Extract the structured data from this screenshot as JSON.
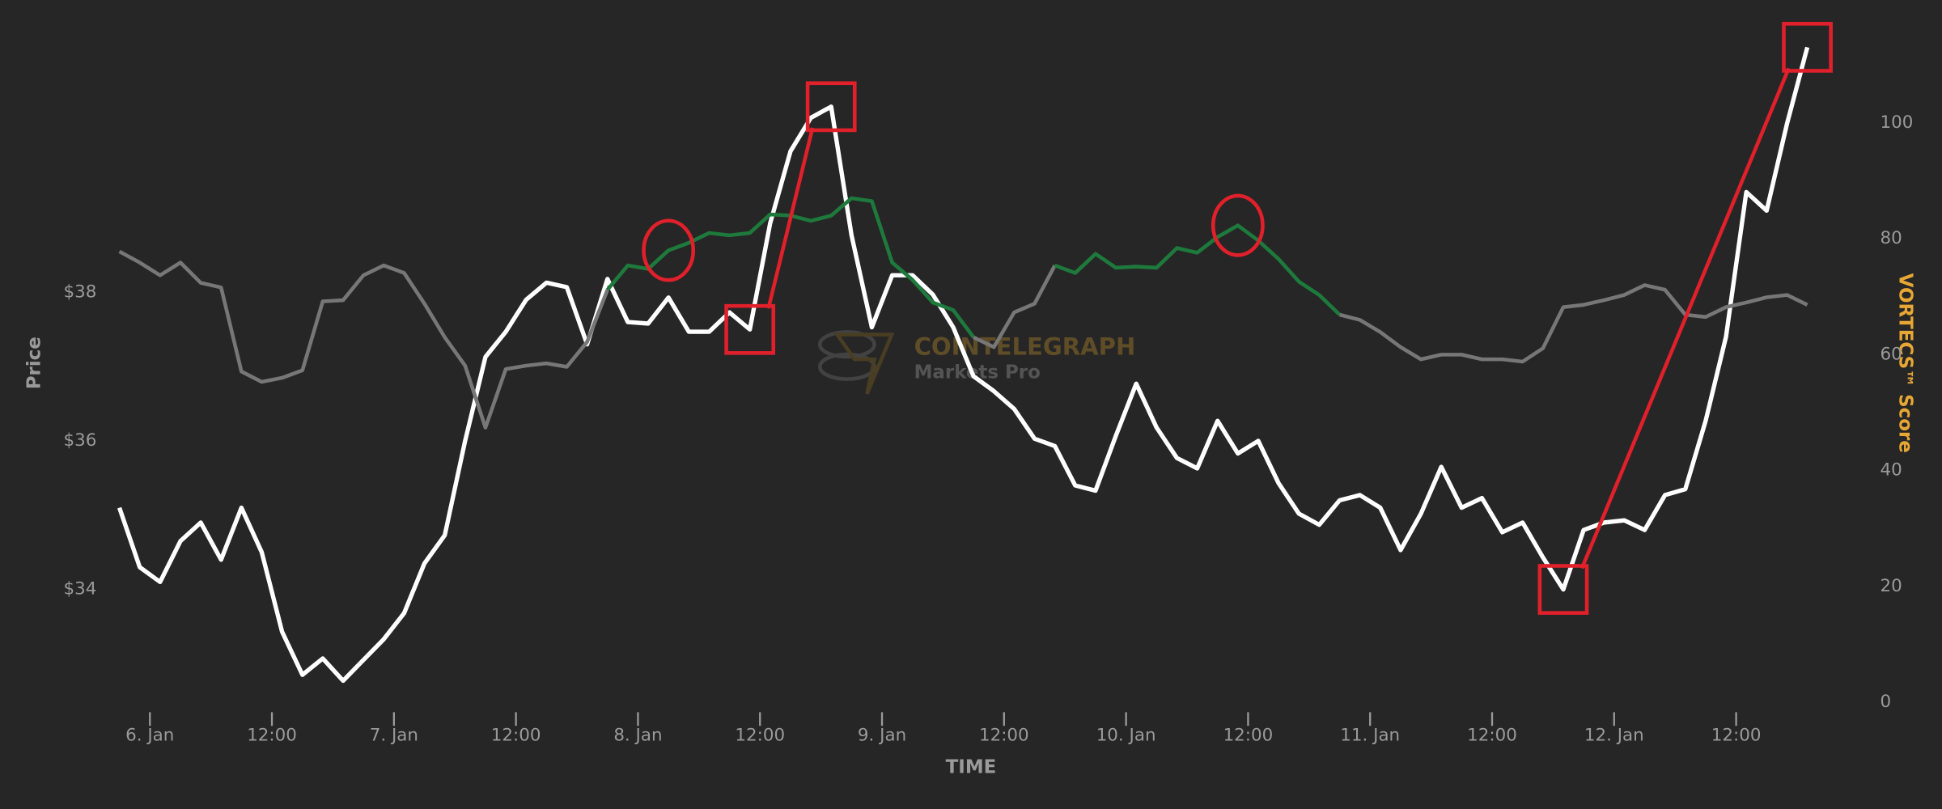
{
  "chart_data": {
    "type": "line",
    "x_label": "TIME",
    "y_label": "Price",
    "y2_label": "VORTECS™ Score",
    "y2_label_color": "#e8a735",
    "background": "#262626",
    "annotation_color": "#e0202a",
    "watermark": {
      "title": "COINTELEGRAPH",
      "subtitle": "Markets Pro"
    },
    "x": [
      -3,
      -1,
      1,
      3,
      5,
      7,
      9,
      11,
      13,
      15,
      17,
      19,
      21,
      23,
      25,
      27,
      29,
      31,
      33,
      35,
      37,
      39,
      41,
      43,
      45,
      47,
      49,
      51,
      53,
      55,
      57,
      59,
      61,
      63,
      65,
      67,
      69,
      71,
      73,
      75,
      77,
      79,
      81,
      83,
      85,
      87,
      89,
      91,
      93,
      95,
      97,
      99,
      101,
      103,
      105,
      107,
      109,
      111,
      113,
      115,
      117,
      119,
      121,
      123,
      125,
      127,
      129,
      131,
      133,
      135,
      137,
      139,
      141,
      143,
      145,
      147,
      149,
      151,
      153,
      155,
      157,
      159,
      161,
      163
    ],
    "xlim": [
      -3,
      164.6
    ],
    "xticks": [
      {
        "value": 0,
        "label": "6. Jan"
      },
      {
        "value": 12,
        "label": "12:00"
      },
      {
        "value": 24,
        "label": "7. Jan"
      },
      {
        "value": 36,
        "label": "12:00"
      },
      {
        "value": 48,
        "label": "8. Jan"
      },
      {
        "value": 60,
        "label": "12:00"
      },
      {
        "value": 72,
        "label": "9. Jan"
      },
      {
        "value": 84,
        "label": "12:00"
      },
      {
        "value": 96,
        "label": "10. Jan"
      },
      {
        "value": 108,
        "label": "12:00"
      },
      {
        "value": 120,
        "label": "11. Jan"
      },
      {
        "value": 132,
        "label": "12:00"
      },
      {
        "value": 144,
        "label": "12. Jan"
      },
      {
        "value": 156,
        "label": "12:00"
      }
    ],
    "ylim": [
      32.48,
      41.6
    ],
    "yticks": [
      {
        "value": 34,
        "label": "$34"
      },
      {
        "value": 36,
        "label": "$36"
      },
      {
        "value": 38,
        "label": "$38"
      }
    ],
    "y2lim": [
      0,
      116.9
    ],
    "y2ticks": [
      0,
      20,
      40,
      60,
      80,
      100
    ],
    "series": [
      {
        "color": "#ffffff",
        "values": [
          35.1,
          34.3,
          34.1,
          34.65,
          34.9,
          34.4,
          35.1,
          34.5,
          33.43,
          32.85,
          33.07,
          32.77,
          33.05,
          33.33,
          33.68,
          34.35,
          34.73,
          36.0,
          37.13,
          37.47,
          37.9,
          38.13,
          38.07,
          37.3,
          38.18,
          37.6,
          37.58,
          37.93,
          37.47,
          37.47,
          37.73,
          37.5,
          38.93,
          39.9,
          40.35,
          40.5,
          38.77,
          37.53,
          38.23,
          38.23,
          37.97,
          37.53,
          36.87,
          36.67,
          36.43,
          36.03,
          35.93,
          35.4,
          35.33,
          36.07,
          36.77,
          36.18,
          35.77,
          35.63,
          36.27,
          35.83,
          36.0,
          35.43,
          35.02,
          34.87,
          35.2,
          35.27,
          35.1,
          34.53,
          35.02,
          35.65,
          35.1,
          35.23,
          34.77,
          34.9,
          34.43,
          34.0,
          34.8,
          34.9,
          34.93,
          34.8,
          35.27,
          35.35,
          36.27,
          37.4,
          39.35,
          39.1,
          40.27,
          41.3
        ]
      },
      {
        "axis": "y2",
        "color": "#777777",
        "colors": [
          "#777777",
          "#777777",
          "#777777",
          "#777777",
          "#777777",
          "#777777",
          "#777777",
          "#777777",
          "#777777",
          "#777777",
          "#777777",
          "#777777",
          "#777777",
          "#777777",
          "#777777",
          "#777777",
          "#777777",
          "#777777",
          "#777777",
          "#777777",
          "#777777",
          "#777777",
          "#777777",
          "#777777",
          "#1e7a3c",
          "#1e7a3c",
          "#1e7a3c",
          "#1e7a3c",
          "#1e7a3c",
          "#1e7a3c",
          "#1e7a3c",
          "#1e7a3c",
          "#1e7a3c",
          "#1e7a3c",
          "#1e7a3c",
          "#1e7a3c",
          "#1e7a3c",
          "#1e7a3c",
          "#1e7a3c",
          "#1e7a3c",
          "#1e7a3c",
          "#1e7a3c",
          "#777777",
          "#777777",
          "#777777",
          "#777777",
          "#1e7a3c",
          "#1e7a3c",
          "#1e7a3c",
          "#1e7a3c",
          "#1e7a3c",
          "#1e7a3c",
          "#1e7a3c",
          "#1e7a3c",
          "#1e7a3c",
          "#1e7a3c",
          "#1e7a3c",
          "#1e7a3c",
          "#1e7a3c",
          "#1e7a3c",
          "#777777",
          "#777777",
          "#777777",
          "#777777",
          "#777777",
          "#777777",
          "#777777",
          "#777777",
          "#777777",
          "#777777",
          "#777777",
          "#777777",
          "#777777",
          "#777777",
          "#777777",
          "#777777",
          "#777777",
          "#777777",
          "#777777",
          "#777777",
          "#777777",
          "#777777",
          "#777777",
          "#777777"
        ],
        "values": [
          77.8,
          75.9,
          73.7,
          75.9,
          72.4,
          71.6,
          57.1,
          55.3,
          56.0,
          57.3,
          69.2,
          69.4,
          73.7,
          75.4,
          74.1,
          68.8,
          63.0,
          58.1,
          47.4,
          57.5,
          58.1,
          58.5,
          57.9,
          62.2,
          71.2,
          75.4,
          74.8,
          78.0,
          79.3,
          81.0,
          80.6,
          81.0,
          84.2,
          84.0,
          83.1,
          84.0,
          87.0,
          86.5,
          75.9,
          72.9,
          69.0,
          67.7,
          63.0,
          61.3,
          67.3,
          68.8,
          75.4,
          74.1,
          77.4,
          75.0,
          75.2,
          75.0,
          78.4,
          77.6,
          80.3,
          82.3,
          79.7,
          76.5,
          72.6,
          70.3,
          66.9,
          66.0,
          63.9,
          61.3,
          59.2,
          60.0,
          60.0,
          59.2,
          59.2,
          58.8,
          61.1,
          68.2,
          68.6,
          69.4,
          70.3,
          72.0,
          71.2,
          66.9,
          66.5,
          68.2,
          69.0,
          69.9,
          70.3,
          68.6
        ]
      }
    ]
  }
}
